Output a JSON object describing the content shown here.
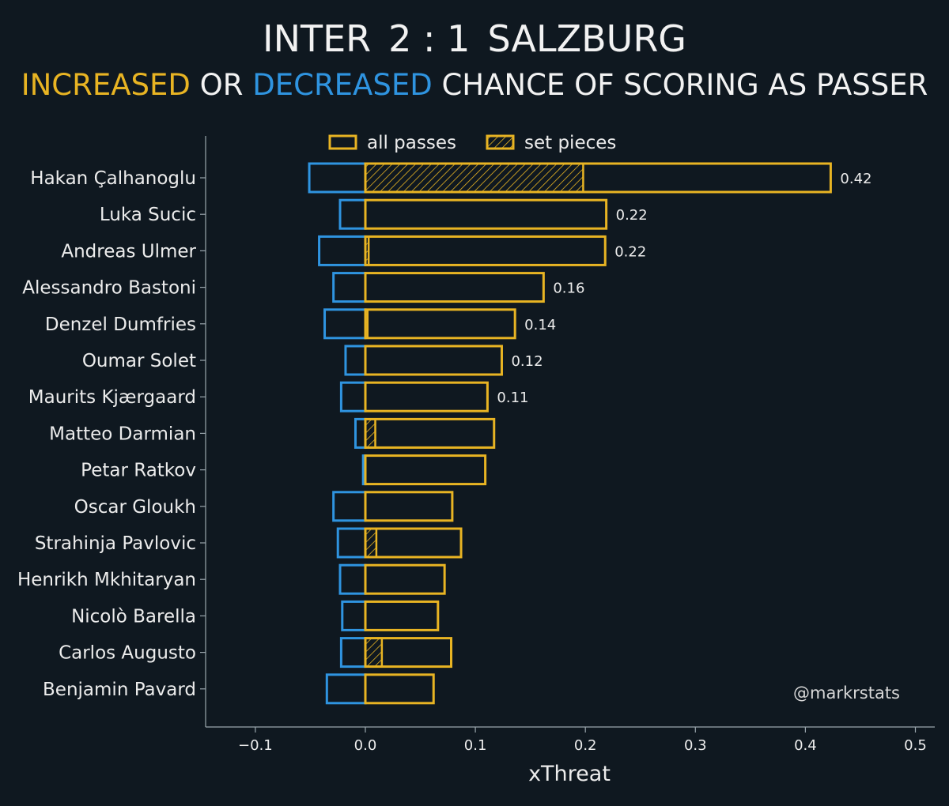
{
  "title": {
    "home": "INTER",
    "score": "2 : 1",
    "away": "SALZBURG",
    "sub_increased": "INCREASED",
    "sub_or": " OR ",
    "sub_decreased": "DECREASED",
    "sub_rest": " CHANCE OF SCORING AS PASSER"
  },
  "colors": {
    "background": "#0f1820",
    "increased": "#e8b423",
    "decreased": "#2f94e0",
    "text": "#ececec"
  },
  "legend": {
    "all_passes": "all passes",
    "set_pieces": "set pieces",
    "placement": "top"
  },
  "watermark": "@markrstats",
  "chart_data": {
    "type": "bar",
    "orientation": "horizontal",
    "xlabel": "xThreat",
    "ylabel": "",
    "xlim": [
      -0.15,
      0.52
    ],
    "xticks": [
      -0.1,
      0.0,
      0.1,
      0.2,
      0.3,
      0.4,
      0.5
    ],
    "xtick_labels": [
      "−0.1",
      "0.0",
      "0.1",
      "0.2",
      "0.3",
      "0.4",
      "0.5"
    ],
    "grid": false,
    "categories": [
      "Hakan Çalhanoglu",
      "Luka Sucic",
      "Andreas Ulmer",
      "Alessandro Bastoni",
      "Denzel Dumfries",
      "Oumar Solet",
      "Maurits Kjærgaard",
      "Matteo Darmian",
      "Petar Ratkov",
      "Oscar Gloukh",
      "Strahinja Pavlovic",
      "Henrikh Mkhitaryan",
      "Nicolò Barella",
      "Carlos Augusto",
      "Benjamin Pavard"
    ],
    "series": [
      {
        "name": "increased (all passes)",
        "values": [
          0.423,
          0.219,
          0.218,
          0.162,
          0.136,
          0.124,
          0.111,
          0.117,
          0.109,
          0.079,
          0.087,
          0.072,
          0.066,
          0.078,
          0.062
        ]
      },
      {
        "name": "decreased (all passes)",
        "values": [
          -0.051,
          -0.023,
          -0.042,
          -0.029,
          -0.037,
          -0.018,
          -0.022,
          -0.009,
          -0.002,
          -0.029,
          -0.025,
          -0.023,
          -0.021,
          -0.022,
          -0.035
        ]
      },
      {
        "name": "set pieces",
        "values": [
          0.198,
          0.0,
          0.003,
          0.0,
          0.002,
          0.0,
          0.0,
          0.009,
          0.0,
          0.0,
          0.01,
          0.0,
          0.0,
          0.015,
          0.0
        ]
      }
    ],
    "value_labels": [
      "0.42",
      "0.22",
      "0.22",
      "0.16",
      "0.14",
      "0.12",
      "0.11",
      "",
      "",
      "",
      "",
      "",
      "",
      "",
      ""
    ]
  }
}
